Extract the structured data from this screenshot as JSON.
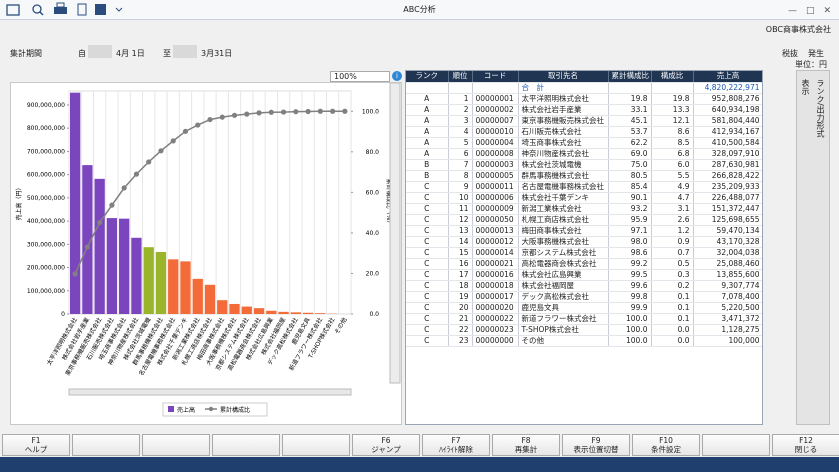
{
  "window": {
    "title": "ABC分析",
    "company": "OBC商事株式会社"
  },
  "header": {
    "period_label": "集計期間",
    "from": "自",
    "from_date": "4月 1日",
    "to": "至",
    "to_date": "3月31日",
    "tax": "税抜",
    "basis": "発生",
    "unit": "単位：円"
  },
  "zoom": "100%",
  "side_panel": {
    "rank_output": "ランク/出力形式",
    "display": "表示"
  },
  "function_keys": [
    {
      "key": "F1",
      "label": "ヘルプ"
    },
    null,
    null,
    null,
    null,
    {
      "key": "F6",
      "label": "ジャンプ"
    },
    {
      "key": "F7",
      "label": "ﾊｲﾗｲﾄ解除"
    },
    {
      "key": "F8",
      "label": "再集計"
    },
    {
      "key": "F9",
      "label": "表示位置切替"
    },
    {
      "key": "F10",
      "label": "条件設定"
    },
    null,
    {
      "key": "F12",
      "label": "閉じる"
    }
  ],
  "chart_data": {
    "type": "pareto",
    "y_title": "売上高（円）",
    "y2_title": "累計構成比（%）",
    "categories": [
      "太平洋照明株式会社",
      "株式会社岩手産業",
      "東京事務機販売株式会社",
      "石川販売株式会社",
      "埼玉商事株式会社",
      "神奈川物産株式会社",
      "株式会社茨城電機",
      "群馬事務機株式会社",
      "名古屋電機事務株式会社",
      "株式会社千葉デンキ",
      "新潟工業株式会社",
      "札幌工商店株式会社",
      "梅田商事株式会社",
      "大阪事務機株式会社",
      "京都システム株式会社",
      "高松電器商会株式会社",
      "株式会社広島興業",
      "株式会社福岡屋",
      "デック高松株式会社",
      "鹿児島文具",
      "新道フラワー株式会社",
      "T-SHOP株式会社",
      "その他"
    ],
    "series": [
      {
        "name": "売上高",
        "color": "#7b45bd",
        "colors": [
          "#7b45bd",
          "#7b45bd",
          "#7b45bd",
          "#7b45bd",
          "#7b45bd",
          "#7b45bd",
          "#9bb52a",
          "#9bb52a",
          "#f26b38",
          "#f26b38",
          "#f26b38",
          "#f26b38",
          "#f26b38",
          "#f26b38",
          "#f26b38",
          "#f26b38",
          "#f26b38",
          "#f26b38",
          "#f26b38",
          "#f26b38",
          "#f26b38",
          "#f26b38",
          "#f26b38"
        ],
        "values": [
          952808276,
          640934198,
          581804440,
          412934167,
          410500584,
          328097910,
          287630981,
          266828422,
          235209933,
          226488077,
          151372447,
          125698655,
          59470134,
          43170328,
          32004038,
          25088460,
          13855600,
          9307774,
          7078400,
          5220500,
          3471372,
          1128275,
          100000
        ]
      },
      {
        "name": "累計構成比",
        "color": "#808080",
        "axis": "y2",
        "values": [
          19.8,
          33.1,
          45.1,
          53.7,
          62.2,
          69.0,
          75.0,
          80.5,
          85.4,
          90.1,
          93.2,
          95.9,
          97.1,
          98.0,
          98.6,
          99.2,
          99.5,
          99.6,
          99.8,
          99.9,
          100.0,
          100.0,
          100.0
        ]
      }
    ],
    "ylim": [
      0,
      960000000
    ],
    "yticks": [
      0,
      {
        "value": 100000000,
        "label": "100,000,000"
      },
      {
        "value": 200000000,
        "label": "200,000,000"
      },
      {
        "value": 300000000,
        "label": "300,000,000"
      },
      {
        "value": 400000000,
        "label": "400,000,000"
      },
      {
        "value": 500000000,
        "label": "500,000,000"
      },
      {
        "value": 600000000,
        "label": "600,000,000"
      },
      {
        "value": 700000000,
        "label": "700,000,000"
      },
      {
        "value": 800000000,
        "label": "800,000,000"
      },
      {
        "value": 900000000,
        "label": "900,000,000"
      }
    ],
    "y2lim": [
      0,
      110
    ],
    "y2ticks": [
      {
        "value": 0,
        "label": "0.0"
      },
      {
        "value": 20,
        "label": "20.0"
      },
      {
        "value": 40,
        "label": "40.0"
      },
      {
        "value": 60,
        "label": "60.0"
      },
      {
        "value": 80,
        "label": "80.0"
      },
      {
        "value": 100,
        "label": "100.0"
      }
    ]
  },
  "table": {
    "headers": [
      "ランク",
      "順位",
      "コード",
      "取引先名",
      "累計構成比",
      "構成比",
      "売上高"
    ],
    "total": {
      "label": "合　計",
      "value": "4,820,222,971"
    },
    "rows": [
      [
        "A",
        "1",
        "00000001",
        "太平洋照明株式会社",
        "19.8",
        "19.8",
        "952,808,276"
      ],
      [
        "A",
        "2",
        "00000002",
        "株式会社岩手産業",
        "33.1",
        "13.3",
        "640,934,198"
      ],
      [
        "A",
        "3",
        "00000007",
        "東京事務機販売株式会社",
        "45.1",
        "12.1",
        "581,804,440"
      ],
      [
        "A",
        "4",
        "00000010",
        "石川販売株式会社",
        "53.7",
        "8.6",
        "412,934,167"
      ],
      [
        "A",
        "5",
        "00000004",
        "埼玉商事株式会社",
        "62.2",
        "8.5",
        "410,500,584"
      ],
      [
        "A",
        "6",
        "00000008",
        "神奈川物産株式会社",
        "69.0",
        "6.8",
        "328,097,910"
      ],
      [
        "B",
        "7",
        "00000003",
        "株式会社茨城電機",
        "75.0",
        "6.0",
        "287,630,981"
      ],
      [
        "B",
        "8",
        "00000005",
        "群馬事務機株式会社",
        "80.5",
        "5.5",
        "266,828,422"
      ],
      [
        "C",
        "9",
        "00000011",
        "名古屋電機事務株式会社",
        "85.4",
        "4.9",
        "235,209,933"
      ],
      [
        "C",
        "10",
        "00000006",
        "株式会社千葉デンキ",
        "90.1",
        "4.7",
        "226,488,077"
      ],
      [
        "C",
        "11",
        "00000009",
        "新潟工業株式会社",
        "93.2",
        "3.1",
        "151,372,447"
      ],
      [
        "C",
        "12",
        "00000050",
        "札幌工商店株式会社",
        "95.9",
        "2.6",
        "125,698,655"
      ],
      [
        "C",
        "13",
        "00000013",
        "梅田商事株式会社",
        "97.1",
        "1.2",
        "59,470,134"
      ],
      [
        "C",
        "14",
        "00000012",
        "大阪事務機株式会社",
        "98.0",
        "0.9",
        "43,170,328"
      ],
      [
        "C",
        "15",
        "00000014",
        "京都システム株式会社",
        "98.6",
        "0.7",
        "32,004,038"
      ],
      [
        "C",
        "16",
        "00000021",
        "高松電器商会株式会社",
        "99.2",
        "0.5",
        "25,088,460"
      ],
      [
        "C",
        "17",
        "00000016",
        "株式会社広島興業",
        "99.5",
        "0.3",
        "13,855,600"
      ],
      [
        "C",
        "18",
        "00000018",
        "株式会社福岡屋",
        "99.6",
        "0.2",
        "9,307,774"
      ],
      [
        "C",
        "19",
        "00000017",
        "デック高松株式会社",
        "99.8",
        "0.1",
        "7,078,400"
      ],
      [
        "C",
        "20",
        "00000020",
        "鹿児島文具",
        "99.9",
        "0.1",
        "5,220,500"
      ],
      [
        "C",
        "21",
        "00000022",
        "新道フラワー株式会社",
        "100.0",
        "0.1",
        "3,471,372"
      ],
      [
        "C",
        "22",
        "00000023",
        "T-SHOP株式会社",
        "100.0",
        "0.0",
        "1,128,275"
      ],
      [
        "C",
        "23",
        "00000000",
        "その他",
        "100.0",
        "0.0",
        "100,000"
      ]
    ]
  }
}
